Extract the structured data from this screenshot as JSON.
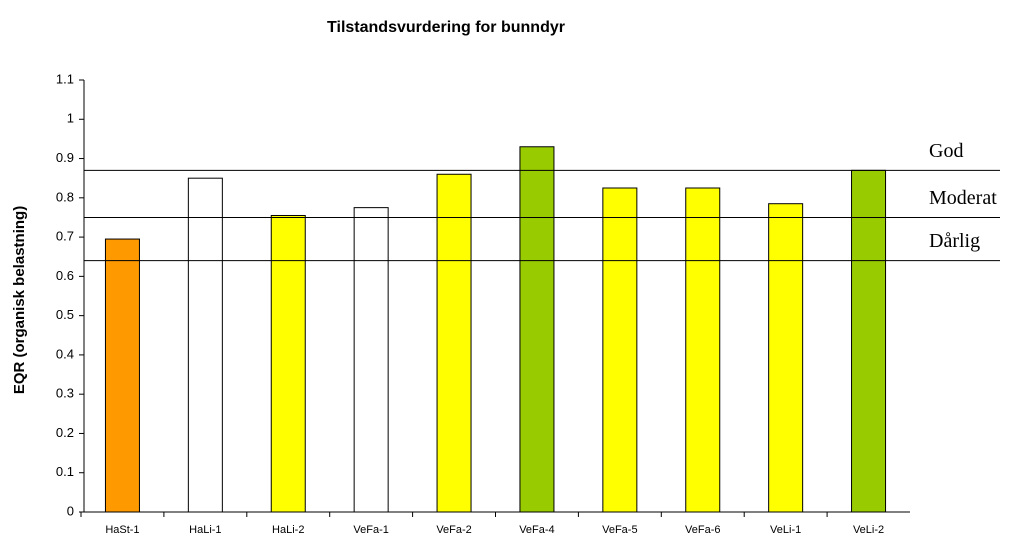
{
  "chart_data": {
    "type": "bar",
    "title": "Tilstandsvurdering for bunndyr",
    "y_label": "EQR (organisk belastning)",
    "categories": [
      "HaSt-1",
      "HaLi-1",
      "HaLi-2",
      "VeFa-1",
      "VeFa-2",
      "VeFa-4",
      "VeFa-5",
      "VeFa-6",
      "VeLi-1",
      "VeLi-2"
    ],
    "values": [
      0.695,
      0.85,
      0.755,
      0.775,
      0.86,
      0.93,
      0.825,
      0.825,
      0.785,
      0.87
    ],
    "colors": [
      "#ff9900",
      "#ffffff",
      "#ffff00",
      "#ffffff",
      "#ffff00",
      "#99cc00",
      "#ffff00",
      "#ffff00",
      "#ffff00",
      "#99cc00"
    ],
    "ylim": [
      0,
      1.1
    ],
    "yticks": [
      0,
      0.1,
      0.2,
      0.3,
      0.4,
      0.5,
      0.6,
      0.7,
      0.8,
      0.9,
      1,
      1.1
    ],
    "reference_lines": [
      {
        "value": 0.87,
        "label": "God"
      },
      {
        "value": 0.75,
        "label": "Moderat"
      },
      {
        "value": 0.64,
        "label": "Dårlig"
      }
    ]
  }
}
